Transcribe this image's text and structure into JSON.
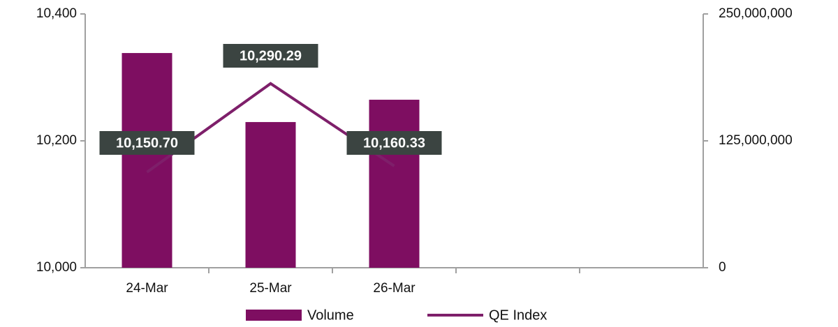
{
  "chart_data": {
    "type": "combo",
    "categories": [
      "24-Mar",
      "25-Mar",
      "26-Mar",
      null,
      null
    ],
    "series": [
      {
        "name": "Volume",
        "type": "bar",
        "axis": "y2",
        "color": "#7e0e61",
        "values": [
          211500000,
          143500000,
          165500000,
          null,
          null
        ]
      },
      {
        "name": "QE Index",
        "type": "line",
        "color": "#7e1f6a",
        "values": [
          10150.7,
          10290.29,
          10160.33,
          null,
          null
        ],
        "value_labels": [
          "10,150.70",
          "10,290.29",
          "10,160.33",
          null,
          null
        ]
      }
    ],
    "ylim": [
      10000,
      10400
    ],
    "yticks": [
      {
        "value": 10000,
        "label": "10,000"
      },
      {
        "value": 10200,
        "label": "10,200"
      },
      {
        "value": 10400,
        "label": "10,400"
      }
    ],
    "y2lim": [
      0,
      250000000
    ],
    "y2ticks": [
      0,
      {
        "value": 125000000,
        "label": "125,000,000"
      },
      {
        "value": 250000000,
        "label": "250,000,000"
      }
    ],
    "grid": false,
    "legend": "bottom"
  }
}
